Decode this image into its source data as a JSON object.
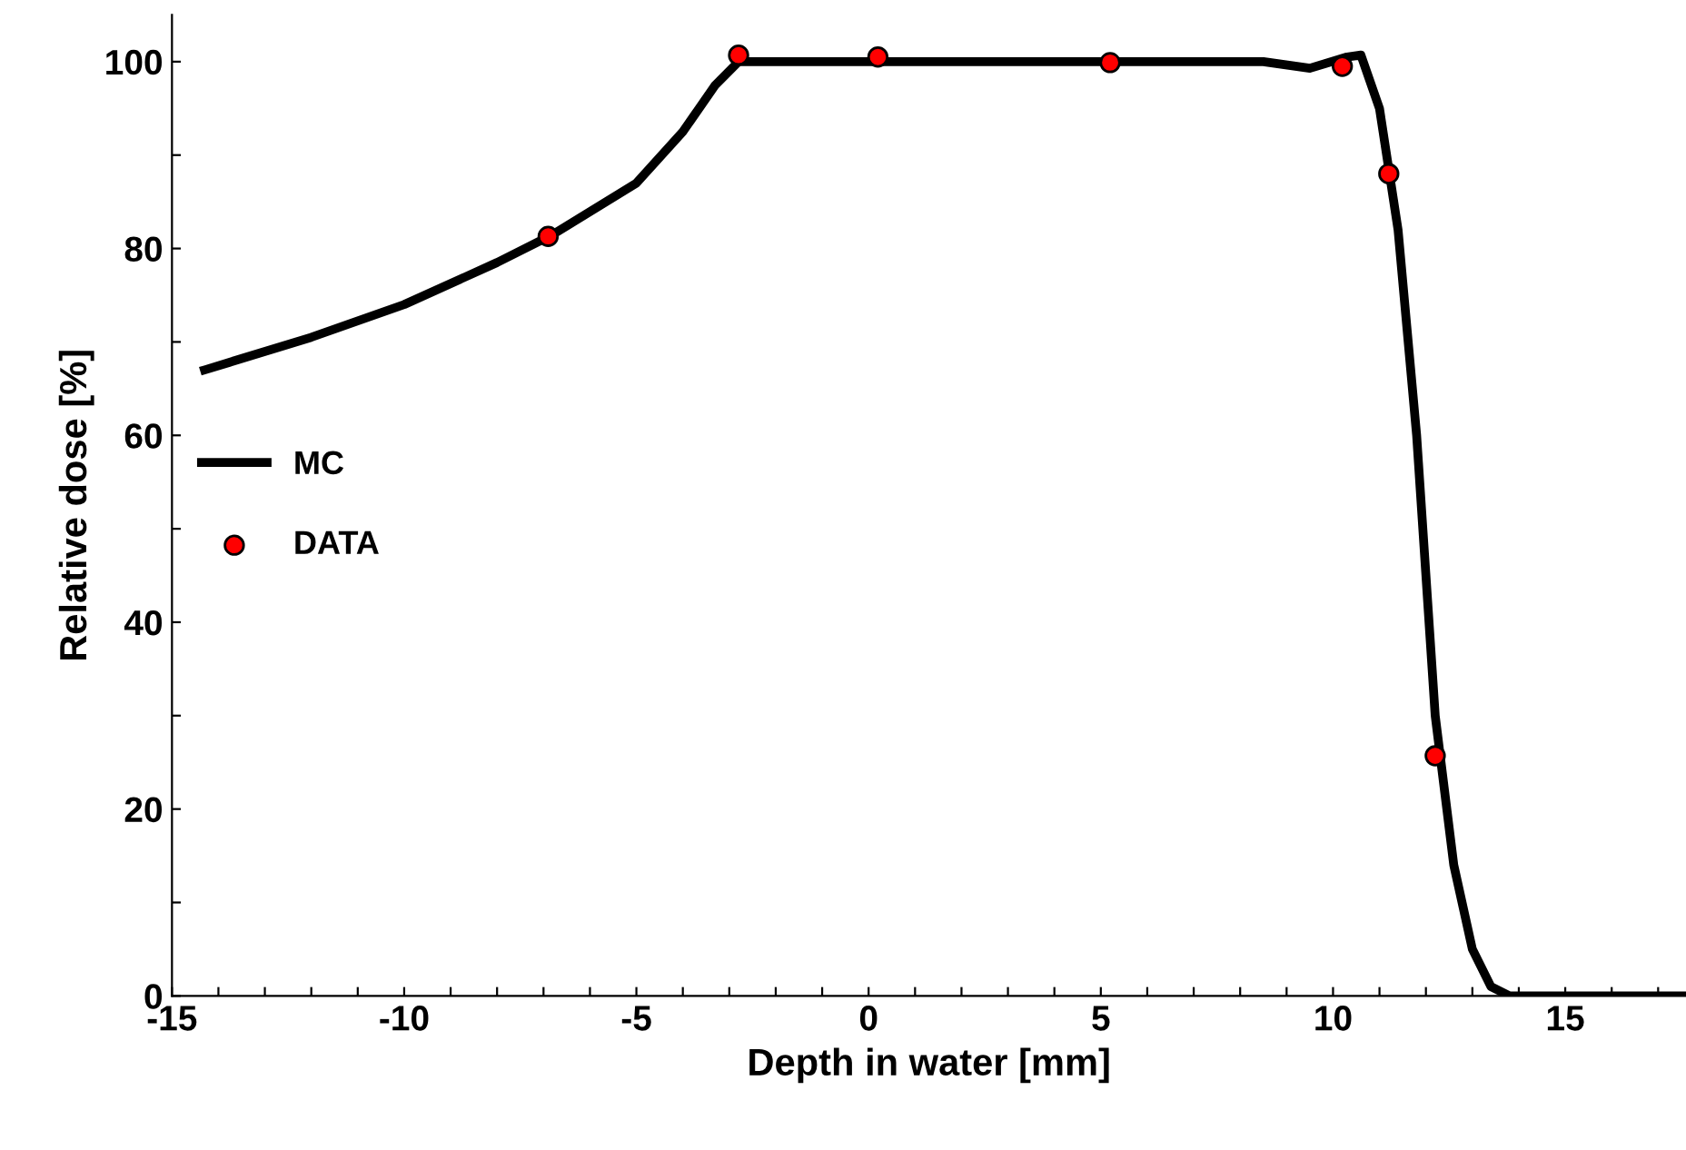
{
  "chart_data": {
    "type": "line",
    "xlabel": "Depth in water [mm]",
    "ylabel": "Relative dose [%]",
    "xlim": [
      -15,
      17.6
    ],
    "ylim": [
      0,
      105
    ],
    "xticks": [
      -15,
      {
        "value": -14,
        "label": null
      },
      {
        "value": -13,
        "label": null
      },
      {
        "value": -12,
        "label": null
      },
      {
        "value": -11,
        "label": null
      },
      -10,
      {
        "value": -9,
        "label": null
      },
      {
        "value": -8,
        "label": null
      },
      {
        "value": -7,
        "label": null
      },
      {
        "value": -6,
        "label": null
      },
      -5,
      {
        "value": -4,
        "label": null
      },
      {
        "value": -3,
        "label": null
      },
      {
        "value": -2,
        "label": null
      },
      {
        "value": -1,
        "label": null
      },
      0,
      {
        "value": 1,
        "label": null
      },
      {
        "value": 2,
        "label": null
      },
      {
        "value": 3,
        "label": null
      },
      {
        "value": 4,
        "label": null
      },
      5,
      {
        "value": 6,
        "label": null
      },
      {
        "value": 7,
        "label": null
      },
      {
        "value": 8,
        "label": null
      },
      {
        "value": 9,
        "label": null
      },
      10,
      {
        "value": 11,
        "label": null
      },
      {
        "value": 12,
        "label": null
      },
      {
        "value": 13,
        "label": null
      },
      {
        "value": 14,
        "label": null
      },
      15,
      {
        "value": 16,
        "label": null
      },
      {
        "value": 17,
        "label": null
      }
    ],
    "yticks": [
      0,
      {
        "value": 10,
        "label": null
      },
      20,
      {
        "value": 30,
        "label": null
      },
      40,
      {
        "value": 50,
        "label": null
      },
      60,
      {
        "value": 70,
        "label": null
      },
      80,
      {
        "value": 90,
        "label": null
      },
      100
    ],
    "grid": false,
    "legend": "center left",
    "series": [
      {
        "name": "MC",
        "color": "#000000",
        "marker": "none",
        "line_style": "solid",
        "x": [
          -14.3,
          -12,
          -10,
          -8,
          -6.8,
          -5,
          -4,
          -3.3,
          -2.8,
          -2,
          0,
          5,
          8.5,
          9.5,
          10.3,
          10.6,
          11.0,
          11.4,
          11.8,
          12.2,
          12.6,
          13.0,
          13.4,
          13.8,
          17.6
        ],
        "values": [
          67,
          70.5,
          74,
          78.5,
          81.5,
          87,
          92.5,
          97.5,
          100,
          100,
          100,
          100,
          100,
          99.3,
          100.5,
          100.7,
          95,
          82,
          60,
          30,
          14,
          5,
          1,
          0,
          0
        ]
      },
      {
        "name": "DATA",
        "type": "scatter",
        "color": "#ff0000",
        "marker": "circle",
        "x": [
          -6.9,
          -2.8,
          0.2,
          5.2,
          10.2,
          11.2,
          12.2
        ],
        "values": [
          81.3,
          100.7,
          100.5,
          99.9,
          99.5,
          88,
          25.7
        ]
      }
    ]
  }
}
